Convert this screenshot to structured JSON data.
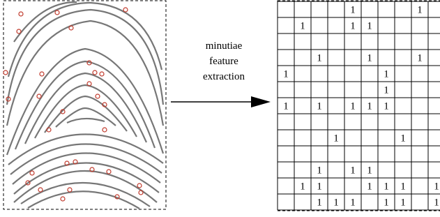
{
  "label": {
    "lines": [
      "minutiae",
      "feature",
      "extraction"
    ]
  },
  "grid": {
    "rows": [
      [
        null,
        null,
        null,
        null,
        "1",
        null,
        null,
        null,
        "1",
        null
      ],
      [
        null,
        "1",
        null,
        null,
        "1",
        "1",
        null,
        null,
        null,
        null
      ],
      [
        null,
        null,
        null,
        null,
        null,
        null,
        null,
        null,
        null,
        null
      ],
      [
        null,
        null,
        "1",
        null,
        null,
        "1",
        null,
        null,
        "1",
        null
      ],
      [
        "1",
        null,
        null,
        null,
        null,
        null,
        "1",
        null,
        null,
        null
      ],
      [
        null,
        null,
        null,
        null,
        null,
        null,
        "1",
        null,
        null,
        null
      ],
      [
        "1",
        null,
        "1",
        null,
        "1",
        "1",
        "1",
        null,
        null,
        null
      ],
      [
        null,
        null,
        null,
        null,
        null,
        null,
        null,
        null,
        null,
        null
      ],
      [
        null,
        null,
        null,
        "1",
        null,
        null,
        null,
        "1",
        null,
        null
      ],
      [
        null,
        null,
        null,
        null,
        null,
        null,
        null,
        null,
        null,
        null
      ],
      [
        null,
        null,
        "1",
        null,
        "1",
        "1",
        null,
        null,
        null,
        null
      ],
      [
        null,
        "1",
        "1",
        null,
        null,
        "1",
        "1",
        "1",
        null,
        "1"
      ],
      [
        null,
        null,
        "1",
        "1",
        "1",
        null,
        "1",
        "1",
        null,
        "1"
      ]
    ]
  }
}
